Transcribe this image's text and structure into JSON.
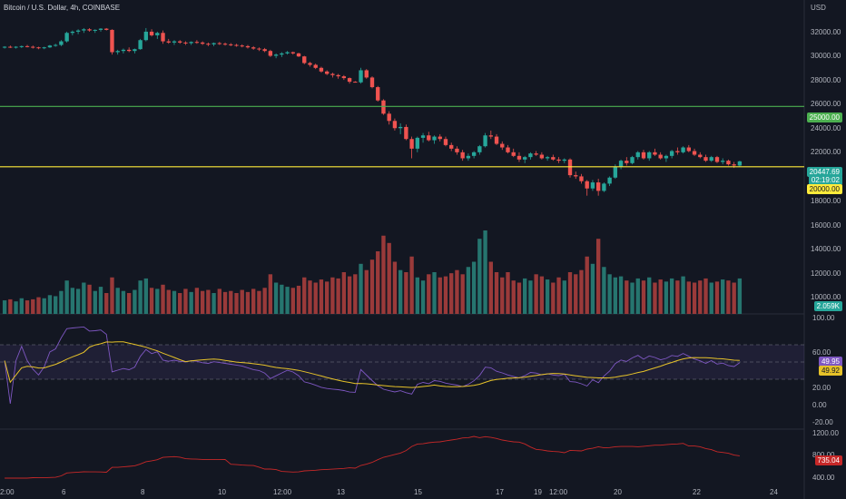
{
  "header": {
    "title": "Bitcoin / U.S. Dollar, 4h, COINBASE"
  },
  "price_axis": {
    "currency": "USD",
    "ticks": [
      "32000.00",
      "30000.00",
      "28000.00",
      "26000.00",
      "24000.00",
      "22000.00",
      "18000.00",
      "16000.00",
      "14000.00",
      "12000.00",
      "10000.00"
    ]
  },
  "time_axis": {
    "ticks": [
      "2:00",
      "6",
      "8",
      "10",
      "12:00",
      "13",
      "15",
      "17",
      "19",
      "12:00",
      "20",
      "22",
      "24"
    ]
  },
  "price_labels": {
    "last_price": "20447.69",
    "countdown": "02:19:02",
    "line_25000": "25000.00",
    "line_20000": "20000.00",
    "volume": "2.059K"
  },
  "rsi_axis": {
    "ticks": [
      "100.00",
      "60.00",
      "20.00",
      "0.00",
      "-20.00"
    ],
    "value": "49.95",
    "ma_value": "49.92"
  },
  "indicator_axis": {
    "ticks": [
      "1200.00",
      "800.00",
      "400.00"
    ],
    "value": "735.04"
  },
  "colors": {
    "up": "#26a69a",
    "down": "#ef5350",
    "up_vol": "#26756f",
    "down_vol": "#9a3a3a",
    "line_25000": "#4caf50",
    "line_20000": "#ffeb3b",
    "rsi": "#7e57c2",
    "rsi_ma": "#e6c229",
    "indicator": "#c62828"
  },
  "chart_data": {
    "type": "candlestick",
    "candles_ohlc": [
      [
        29900,
        30000,
        29800,
        29950
      ],
      [
        29950,
        30050,
        29850,
        29900
      ],
      [
        29900,
        30000,
        29800,
        29950
      ],
      [
        29950,
        30050,
        29850,
        30000
      ],
      [
        30000,
        30100,
        29900,
        29950
      ],
      [
        29950,
        30050,
        29800,
        29900
      ],
      [
        29900,
        29950,
        29750,
        29850
      ],
      [
        29850,
        29950,
        29750,
        29900
      ],
      [
        29900,
        30100,
        29850,
        30050
      ],
      [
        30050,
        30200,
        29950,
        30100
      ],
      [
        30100,
        30500,
        30000,
        30400
      ],
      [
        30400,
        31200,
        30300,
        31100
      ],
      [
        31100,
        31300,
        30900,
        31200
      ],
      [
        31200,
        31400,
        31000,
        31300
      ],
      [
        31300,
        31500,
        31100,
        31400
      ],
      [
        31400,
        31500,
        31200,
        31300
      ],
      [
        31300,
        31400,
        31100,
        31350
      ],
      [
        31350,
        31500,
        31200,
        31450
      ],
      [
        31450,
        31500,
        31300,
        31350
      ],
      [
        31350,
        31400,
        29300,
        29500
      ],
      [
        29500,
        29700,
        29300,
        29600
      ],
      [
        29600,
        29800,
        29400,
        29700
      ],
      [
        29700,
        29900,
        29500,
        29600
      ],
      [
        29600,
        29800,
        29400,
        29750
      ],
      [
        29750,
        30600,
        29700,
        30500
      ],
      [
        30500,
        31500,
        30400,
        31200
      ],
      [
        31200,
        31400,
        30800,
        30900
      ],
      [
        30900,
        31200,
        30600,
        31100
      ],
      [
        31100,
        31300,
        30200,
        30400
      ],
      [
        30400,
        30600,
        30200,
        30300
      ],
      [
        30300,
        30500,
        30100,
        30400
      ],
      [
        30400,
        30500,
        30200,
        30300
      ],
      [
        30300,
        30400,
        30100,
        30250
      ],
      [
        30250,
        30400,
        30100,
        30350
      ],
      [
        30350,
        30500,
        30200,
        30300
      ],
      [
        30300,
        30400,
        30100,
        30200
      ],
      [
        30200,
        30300,
        30000,
        30150
      ],
      [
        30150,
        30300,
        30000,
        30250
      ],
      [
        30250,
        30350,
        30100,
        30200
      ],
      [
        30200,
        30300,
        30050,
        30150
      ],
      [
        30150,
        30250,
        30000,
        30100
      ],
      [
        30100,
        30200,
        29950,
        30050
      ],
      [
        30050,
        30150,
        29900,
        30000
      ],
      [
        30000,
        30100,
        29800,
        29900
      ],
      [
        29900,
        30000,
        29700,
        29800
      ],
      [
        29800,
        29900,
        29600,
        29750
      ],
      [
        29750,
        29850,
        29500,
        29600
      ],
      [
        29600,
        29700,
        29100,
        29200
      ],
      [
        29200,
        29400,
        29000,
        29300
      ],
      [
        29300,
        29500,
        29100,
        29400
      ],
      [
        29400,
        29600,
        29300,
        29500
      ],
      [
        29500,
        29550,
        29300,
        29400
      ],
      [
        29400,
        29450,
        29100,
        29150
      ],
      [
        29150,
        29200,
        28500,
        28600
      ],
      [
        28600,
        28700,
        28300,
        28450
      ],
      [
        28450,
        28550,
        28100,
        28200
      ],
      [
        28200,
        28300,
        27800,
        27900
      ],
      [
        27900,
        28000,
        27600,
        27700
      ],
      [
        27700,
        27800,
        27400,
        27600
      ],
      [
        27600,
        27700,
        27300,
        27500
      ],
      [
        27500,
        27600,
        27200,
        27350
      ],
      [
        27350,
        27400,
        26900,
        27050
      ],
      [
        27050,
        27100,
        27000,
        27000
      ],
      [
        27000,
        28200,
        26900,
        28000
      ],
      [
        28000,
        28100,
        27300,
        27400
      ],
      [
        27400,
        27500,
        26500,
        26600
      ],
      [
        26600,
        26700,
        25400,
        25500
      ],
      [
        25500,
        25600,
        24300,
        24400
      ],
      [
        24400,
        24600,
        23500,
        23800
      ],
      [
        23800,
        24000,
        23000,
        23200
      ],
      [
        23200,
        23600,
        22700,
        23300
      ],
      [
        23300,
        23500,
        22200,
        22300
      ],
      [
        22300,
        22500,
        20700,
        21500
      ],
      [
        21500,
        22500,
        21200,
        22400
      ],
      [
        22400,
        22800,
        22000,
        22600
      ],
      [
        22600,
        22900,
        22100,
        22200
      ],
      [
        22200,
        22600,
        21900,
        22500
      ],
      [
        22500,
        22700,
        22100,
        22300
      ],
      [
        22300,
        22500,
        21700,
        21800
      ],
      [
        21800,
        22000,
        21300,
        21500
      ],
      [
        21500,
        21700,
        21000,
        21200
      ],
      [
        21200,
        21400,
        20500,
        20700
      ],
      [
        20700,
        21100,
        20500,
        20900
      ],
      [
        20900,
        21300,
        20700,
        21200
      ],
      [
        21200,
        21800,
        21000,
        21700
      ],
      [
        21700,
        22800,
        21600,
        22600
      ],
      [
        22600,
        23000,
        22300,
        22500
      ],
      [
        22500,
        22700,
        21800,
        21900
      ],
      [
        21900,
        22100,
        21400,
        21600
      ],
      [
        21600,
        21800,
        21100,
        21200
      ],
      [
        21200,
        21500,
        20800,
        20900
      ],
      [
        20900,
        21200,
        20400,
        20600
      ],
      [
        20600,
        20900,
        20300,
        20800
      ],
      [
        20800,
        21200,
        20600,
        21100
      ],
      [
        21100,
        21300,
        20900,
        21000
      ],
      [
        21000,
        21200,
        20600,
        20700
      ],
      [
        20700,
        20900,
        20500,
        20800
      ],
      [
        20800,
        21000,
        20500,
        20600
      ],
      [
        20600,
        20800,
        20300,
        20500
      ],
      [
        20500,
        20700,
        20300,
        20600
      ],
      [
        20600,
        20700,
        19100,
        19300
      ],
      [
        19300,
        19600,
        19000,
        19200
      ],
      [
        19200,
        19400,
        18600,
        18800
      ],
      [
        18800,
        18900,
        17600,
        18200
      ],
      [
        18200,
        18900,
        18000,
        18700
      ],
      [
        18700,
        19000,
        17600,
        18000
      ],
      [
        18000,
        18700,
        17900,
        18600
      ],
      [
        18600,
        19200,
        18400,
        19100
      ],
      [
        19100,
        20200,
        19000,
        20000
      ],
      [
        20000,
        20600,
        19800,
        20500
      ],
      [
        20500,
        20800,
        20100,
        20300
      ],
      [
        20300,
        20900,
        20200,
        20800
      ],
      [
        20800,
        21300,
        20600,
        21200
      ],
      [
        21200,
        21400,
        20600,
        20700
      ],
      [
        20700,
        21300,
        20500,
        21200
      ],
      [
        21200,
        21500,
        20900,
        21000
      ],
      [
        21000,
        21200,
        20600,
        20700
      ],
      [
        20700,
        21000,
        20400,
        20900
      ],
      [
        20900,
        21400,
        20700,
        21300
      ],
      [
        21300,
        21600,
        21000,
        21200
      ],
      [
        21200,
        21700,
        21100,
        21600
      ],
      [
        21600,
        21800,
        21200,
        21300
      ],
      [
        21300,
        21500,
        20900,
        21000
      ],
      [
        21000,
        21200,
        20700,
        20800
      ],
      [
        20800,
        21000,
        20400,
        20500
      ],
      [
        20500,
        20900,
        20400,
        20800
      ],
      [
        20800,
        20900,
        20300,
        20400
      ],
      [
        20400,
        20700,
        20200,
        20500
      ],
      [
        20500,
        20600,
        20100,
        20200
      ],
      [
        20200,
        20400,
        19900,
        20100
      ],
      [
        20100,
        20500,
        20000,
        20448
      ]
    ],
    "volume": [
      1.3,
      1.4,
      1.2,
      1.5,
      1.3,
      1.4,
      1.6,
      1.5,
      1.8,
      1.7,
      2.2,
      3.2,
      2.5,
      2.4,
      3.0,
      2.8,
      2.2,
      2.6,
      2.0,
      3.5,
      2.5,
      2.2,
      2.0,
      2.3,
      3.2,
      3.4,
      2.5,
      2.4,
      2.8,
      2.3,
      2.2,
      2.0,
      2.4,
      2.1,
      2.5,
      2.2,
      2.3,
      2.0,
      2.4,
      2.1,
      2.2,
      2.0,
      2.3,
      2.1,
      2.4,
      2.2,
      2.5,
      3.8,
      3.0,
      2.8,
      2.6,
      2.5,
      2.7,
      3.5,
      3.2,
      3.0,
      3.3,
      3.1,
      3.5,
      3.4,
      4.0,
      3.6,
      3.8,
      4.8,
      4.2,
      5.2,
      6.0,
      7.5,
      6.8,
      5.0,
      4.2,
      4.0,
      5.5,
      3.5,
      3.2,
      3.8,
      4.0,
      3.5,
      3.6,
      3.9,
      4.2,
      3.8,
      4.5,
      5.0,
      7.2,
      8.0,
      5.0,
      4.0,
      3.5,
      4.0,
      3.2,
      3.0,
      3.4,
      3.2,
      3.8,
      3.6,
      3.3,
      3.0,
      3.5,
      3.2,
      4.0,
      3.8,
      4.2,
      5.5,
      4.8,
      7.2,
      4.5,
      3.8,
      3.5,
      3.6,
      3.2,
      3.0,
      3.4,
      3.2,
      3.5,
      3.0,
      3.3,
      3.1,
      3.4,
      3.2,
      3.6,
      3.1,
      3.0,
      3.2,
      3.4,
      3.0,
      3.1,
      3.3,
      3.2,
      3.0,
      3.4,
      2.8,
      2.9,
      2.5,
      2.059
    ],
    "rsi": {
      "axis": {
        "min": -20,
        "max": 100
      },
      "bands": [
        30,
        50,
        70
      ],
      "value": 49.95,
      "ma_value": 49.92
    },
    "indicator": {
      "value": 735.04
    }
  }
}
